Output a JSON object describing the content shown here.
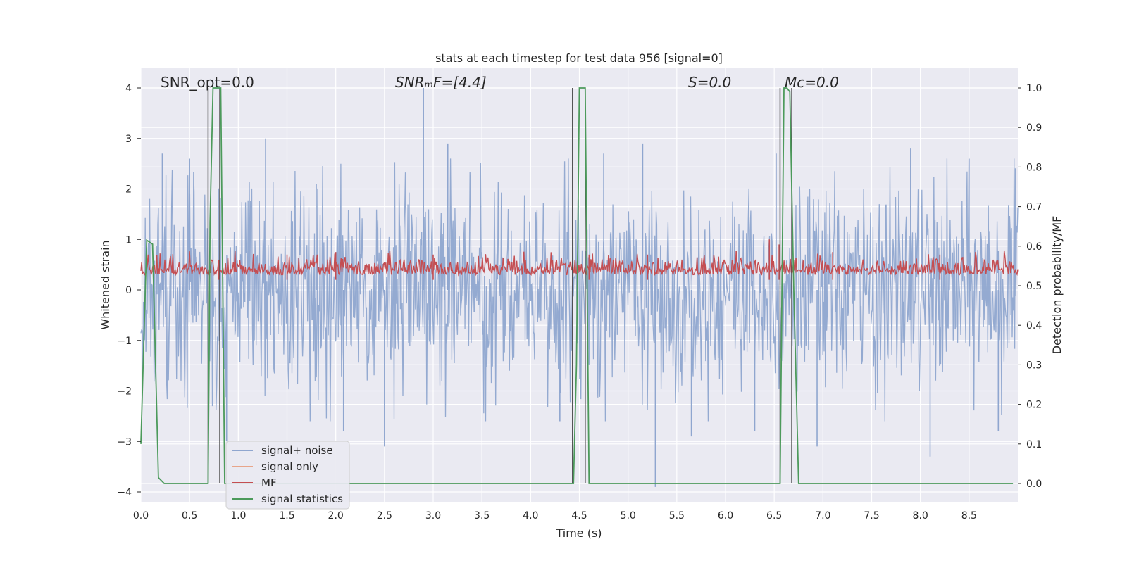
{
  "chart_data": {
    "type": "line",
    "title": "stats at each timestep for test data 956 [signal=0]",
    "xlabel": "Time (s)",
    "ylabel": "Whitened strain",
    "ylabel_right": "Detection probability/MF",
    "xlim": [
      0.0,
      9.0
    ],
    "ylim": [
      -4.2,
      4.4
    ],
    "ylim_right": [
      -0.046,
      1.034
    ],
    "x_ticks": [
      "0.0",
      "0.5",
      "1.0",
      "1.5",
      "2.0",
      "2.5",
      "3.0",
      "3.5",
      "4.0",
      "4.5",
      "5.0",
      "5.5",
      "6.0",
      "6.5",
      "7.0",
      "7.5",
      "8.0",
      "8.5"
    ],
    "y_ticks": [
      "4",
      "3",
      "2",
      "1",
      "0",
      "−1",
      "−2",
      "−3",
      "−4"
    ],
    "y_right_ticks": [
      "1.0",
      "0.9",
      "0.8",
      "0.7",
      "0.6",
      "0.5",
      "0.4",
      "0.3",
      "0.2",
      "0.1",
      "0.0"
    ],
    "grid": true,
    "legend_placement": "lower-left",
    "annotations": {
      "snr_opt": "SNR_opt=0.0",
      "snr_mf": "SNRₘF=[4.4]",
      "s": "S=0.0",
      "mc": "Mᴄ=0.0"
    },
    "series": [
      {
        "name": "signal+ noise",
        "color": "#8fa6cf",
        "description_of_values": "noise in approximately [-3.9, 3.9] around 0",
        "peaks": [
          [
            0.22,
            2.7
          ],
          [
            0.5,
            2.6
          ],
          [
            0.88,
            -3.0
          ],
          [
            1.28,
            3.0
          ],
          [
            1.8,
            2.1
          ],
          [
            2.08,
            -2.8
          ],
          [
            2.5,
            -3.1
          ],
          [
            2.9,
            4.0
          ],
          [
            3.15,
            2.9
          ],
          [
            4.3,
            -2.6
          ],
          [
            4.75,
            2.7
          ],
          [
            5.15,
            2.9
          ],
          [
            5.28,
            -3.9
          ],
          [
            5.65,
            -2.9
          ],
          [
            6.3,
            -2.8
          ],
          [
            6.52,
            2.7
          ],
          [
            6.94,
            -3.1
          ],
          [
            7.9,
            2.8
          ],
          [
            8.1,
            -3.3
          ],
          [
            8.5,
            2.6
          ],
          [
            8.8,
            -2.8
          ]
        ]
      },
      {
        "name": "signal only",
        "color": "#e8a58a",
        "values": []
      },
      {
        "name": "MF",
        "color": "#c44e52",
        "description_of_values": "fluctuating between about 0.0 and 0.8 on left axis",
        "peaks": [
          [
            0.8,
            0.6
          ],
          [
            1.5,
            0.7
          ],
          [
            2.0,
            0.75
          ],
          [
            3.0,
            0.7
          ],
          [
            4.6,
            0.7
          ],
          [
            5.2,
            0.7
          ],
          [
            6.45,
            1.0
          ],
          [
            6.55,
            0.9
          ],
          [
            7.1,
            0.75
          ],
          [
            8.2,
            0.7
          ]
        ]
      },
      {
        "name": "signal statistics",
        "color": "#4c9a5b",
        "x": [
          0.0,
          0.06,
          0.12,
          0.18,
          0.24,
          0.3,
          0.69,
          0.7,
          0.71,
          0.74,
          0.76,
          0.8,
          0.82,
          0.86,
          4.43,
          4.44,
          4.47,
          4.5,
          4.53,
          4.56,
          4.6,
          4.65,
          6.56,
          6.58,
          6.6,
          6.63,
          6.66,
          6.7,
          6.75,
          8.95
        ],
        "y": [
          0.1,
          0.615,
          0.605,
          0.015,
          0.0,
          0.0,
          0.0,
          0.3,
          0.66,
          1.0,
          1.0,
          1.0,
          1.0,
          0.0,
          0.0,
          0.0,
          0.3,
          1.0,
          1.0,
          1.0,
          0.0,
          0.0,
          0.0,
          0.5,
          1.0,
          1.0,
          0.99,
          0.5,
          0.0,
          0.0
        ]
      }
    ],
    "vertical_markers": [
      0.69,
      0.81,
      4.43,
      4.56,
      6.56,
      6.68
    ]
  }
}
